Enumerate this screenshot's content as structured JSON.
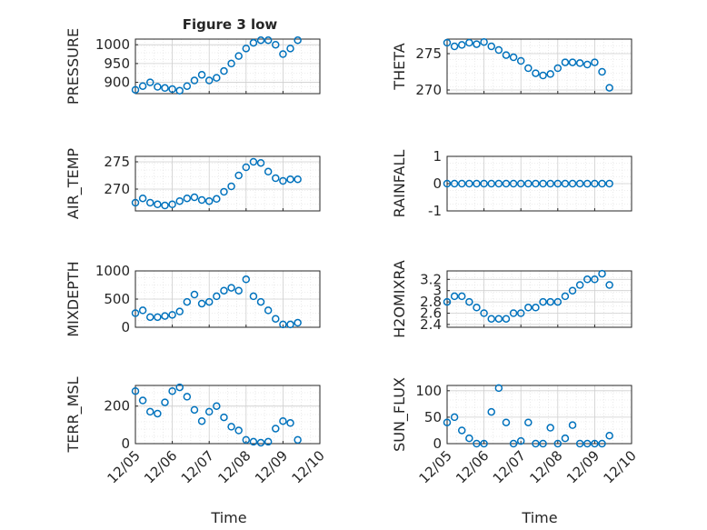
{
  "figure": {
    "title": "Figure 3 low",
    "marker_color": "#0072BD",
    "xlabel": "Time",
    "x_ticks": [
      "12/05",
      "12/06",
      "12/07",
      "12/08",
      "12/09",
      "12/10"
    ]
  },
  "chart_data": [
    {
      "type": "scatter",
      "title": "Figure 3 low",
      "ylabel": "PRESSURE",
      "xlim": [
        5,
        10
      ],
      "ylim": [
        870,
        1015
      ],
      "y_ticks": [
        900,
        950,
        1000
      ],
      "grid": true,
      "x": [
        5.0,
        5.2,
        5.4,
        5.6,
        5.8,
        6.0,
        6.2,
        6.4,
        6.6,
        6.8,
        7.0,
        7.2,
        7.4,
        7.6,
        7.8,
        8.0,
        8.2,
        8.4,
        8.6,
        8.8,
        9.0,
        9.2,
        9.4
      ],
      "y": [
        880,
        890,
        900,
        888,
        885,
        882,
        878,
        890,
        905,
        920,
        905,
        912,
        930,
        950,
        970,
        990,
        1005,
        1012,
        1012,
        1000,
        975,
        990,
        1012
      ]
    },
    {
      "type": "scatter",
      "ylabel": "THETA",
      "xlim": [
        5,
        10
      ],
      "ylim": [
        269.5,
        277.0
      ],
      "y_ticks": [
        270,
        275
      ],
      "grid": true,
      "x": [
        5.0,
        5.2,
        5.4,
        5.6,
        5.8,
        6.0,
        6.2,
        6.4,
        6.6,
        6.8,
        7.0,
        7.2,
        7.4,
        7.6,
        7.8,
        8.0,
        8.2,
        8.4,
        8.6,
        8.8,
        9.0,
        9.2,
        9.4
      ],
      "y": [
        276.5,
        276.0,
        276.2,
        276.5,
        276.3,
        276.6,
        276.0,
        275.5,
        274.8,
        274.5,
        274.0,
        273.0,
        272.3,
        272.0,
        272.2,
        273.0,
        273.8,
        273.8,
        273.7,
        273.5,
        273.8,
        272.5,
        270.3
      ]
    },
    {
      "type": "scatter",
      "ylabel": "AIR_TEMP",
      "xlim": [
        5,
        10
      ],
      "ylim": [
        266.0,
        276.0
      ],
      "y_ticks": [
        270,
        275
      ],
      "grid": true,
      "x": [
        5.0,
        5.2,
        5.4,
        5.6,
        5.8,
        6.0,
        6.2,
        6.4,
        6.6,
        6.8,
        7.0,
        7.2,
        7.4,
        7.6,
        7.8,
        8.0,
        8.2,
        8.4,
        8.6,
        8.8,
        9.0,
        9.2,
        9.4
      ],
      "y": [
        267.5,
        268.3,
        267.5,
        267.2,
        267.0,
        267.2,
        267.8,
        268.3,
        268.5,
        268.0,
        267.8,
        268.2,
        269.5,
        270.5,
        272.5,
        274.0,
        275.0,
        274.8,
        273.2,
        272.0,
        271.5,
        271.8,
        271.8
      ]
    },
    {
      "type": "scatter",
      "ylabel": "RAINFALL",
      "xlim": [
        5,
        10
      ],
      "ylim": [
        -1,
        1
      ],
      "y_ticks": [
        -1,
        0,
        1
      ],
      "grid": true,
      "x": [
        5.0,
        5.2,
        5.4,
        5.6,
        5.8,
        6.0,
        6.2,
        6.4,
        6.6,
        6.8,
        7.0,
        7.2,
        7.4,
        7.6,
        7.8,
        8.0,
        8.2,
        8.4,
        8.6,
        8.8,
        9.0,
        9.2,
        9.4
      ],
      "y": [
        0,
        0,
        0,
        0,
        0,
        0,
        0,
        0,
        0,
        0,
        0,
        0,
        0,
        0,
        0,
        0,
        0,
        0,
        0,
        0,
        0,
        0,
        0
      ]
    },
    {
      "type": "scatter",
      "ylabel": "MIXDEPTH",
      "xlim": [
        5,
        10
      ],
      "ylim": [
        0,
        1000
      ],
      "y_ticks": [
        0,
        500,
        1000
      ],
      "grid": true,
      "x": [
        5.0,
        5.2,
        5.4,
        5.6,
        5.8,
        6.0,
        6.2,
        6.4,
        6.6,
        6.8,
        7.0,
        7.2,
        7.4,
        7.6,
        7.8,
        8.0,
        8.2,
        8.4,
        8.6,
        8.8,
        9.0,
        9.2,
        9.4
      ],
      "y": [
        250,
        300,
        180,
        180,
        200,
        220,
        280,
        450,
        580,
        420,
        450,
        550,
        650,
        700,
        650,
        850,
        550,
        450,
        300,
        150,
        50,
        50,
        80
      ]
    },
    {
      "type": "scatter",
      "ylabel": "H2OMIXRA",
      "xlim": [
        5,
        10
      ],
      "ylim": [
        2.35,
        3.35
      ],
      "y_ticks": [
        2.4,
        2.6,
        2.8,
        3.0,
        3.2
      ],
      "y_tick_labels": [
        "2.4",
        "2.6",
        "2.8",
        "3",
        "3.2"
      ],
      "grid": true,
      "x": [
        5.0,
        5.2,
        5.4,
        5.6,
        5.8,
        6.0,
        6.2,
        6.4,
        6.6,
        6.8,
        7.0,
        7.2,
        7.4,
        7.6,
        7.8,
        8.0,
        8.2,
        8.4,
        8.6,
        8.8,
        9.0,
        9.2,
        9.4
      ],
      "y": [
        2.8,
        2.9,
        2.9,
        2.8,
        2.7,
        2.6,
        2.5,
        2.5,
        2.5,
        2.6,
        2.6,
        2.7,
        2.7,
        2.8,
        2.8,
        2.8,
        2.9,
        3.0,
        3.1,
        3.2,
        3.2,
        3.3,
        3.1
      ]
    },
    {
      "type": "scatter",
      "ylabel": "TERR_MSL",
      "xlim": [
        5,
        10
      ],
      "ylim": [
        0,
        310
      ],
      "y_ticks": [
        0,
        200
      ],
      "grid": true,
      "x": [
        5.0,
        5.2,
        5.4,
        5.6,
        5.8,
        6.0,
        6.2,
        6.4,
        6.6,
        6.8,
        7.0,
        7.2,
        7.4,
        7.6,
        7.8,
        8.0,
        8.2,
        8.4,
        8.6,
        8.8,
        9.0,
        9.2,
        9.4
      ],
      "y": [
        280,
        230,
        170,
        160,
        220,
        280,
        300,
        250,
        180,
        120,
        170,
        200,
        140,
        90,
        70,
        20,
        10,
        5,
        10,
        80,
        120,
        110,
        20
      ]
    },
    {
      "type": "scatter",
      "ylabel": "SUN_FLUX",
      "xlim": [
        5,
        10
      ],
      "ylim": [
        0,
        110
      ],
      "y_ticks": [
        0,
        50,
        100
      ],
      "grid": true,
      "x": [
        5.0,
        5.2,
        5.4,
        5.6,
        5.8,
        6.0,
        6.2,
        6.4,
        6.6,
        6.8,
        7.0,
        7.2,
        7.4,
        7.6,
        7.8,
        8.0,
        8.2,
        8.4,
        8.6,
        8.8,
        9.0,
        9.2,
        9.4
      ],
      "y": [
        40,
        50,
        25,
        10,
        0,
        0,
        60,
        105,
        40,
        0,
        5,
        40,
        0,
        0,
        30,
        0,
        10,
        35,
        0,
        0,
        0,
        0,
        15
      ]
    }
  ]
}
